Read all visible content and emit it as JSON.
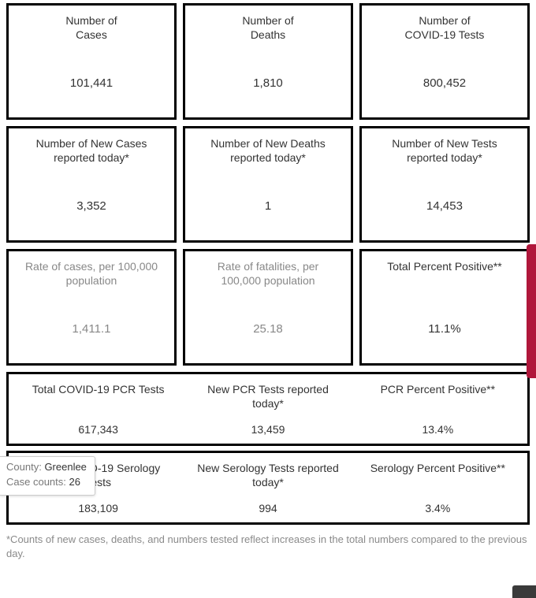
{
  "colors": {
    "card_border": "#000000",
    "text_primary": "#333333",
    "text_dim": "#888888",
    "footnote": "#8a8a8a",
    "side_tab": "#b0173b",
    "corner": "#3a3a3a",
    "tooltip_border": "#cccccc",
    "background": "#ffffff"
  },
  "row1": [
    {
      "label": "Number of\nCases",
      "value": "101,441",
      "dim": false
    },
    {
      "label": "Number of\nDeaths",
      "value": "1,810",
      "dim": false
    },
    {
      "label": "Number of\nCOVID-19 Tests",
      "value": "800,452",
      "dim": false
    }
  ],
  "row2": [
    {
      "label": "Number of New Cases\nreported today*",
      "value": "3,352",
      "dim": false
    },
    {
      "label": "Number of New Deaths\nreported today*",
      "value": "1",
      "dim": false
    },
    {
      "label": "Number of New Tests\nreported today*",
      "value": "14,453",
      "dim": false
    }
  ],
  "row3": [
    {
      "label": "Rate of cases, per 100,000\npopulation",
      "value": "1,411.1",
      "dim": true
    },
    {
      "label": "Rate of fatalities, per\n100,000 population",
      "value": "25.18",
      "dim": true
    },
    {
      "label": "Total Percent Positive**",
      "value": "11.1%",
      "dim": false
    }
  ],
  "wide1": [
    {
      "label": "Total COVID-19 PCR Tests",
      "value": "617,343"
    },
    {
      "label": "New PCR Tests reported\ntoday*",
      "value": "13,459"
    },
    {
      "label": "PCR Percent Positive**",
      "value": "13.4%"
    }
  ],
  "wide2": [
    {
      "label": "Total COVID-19 Serology\nTests",
      "value": "183,109"
    },
    {
      "label": "New Serology Tests reported\ntoday*",
      "value": "994"
    },
    {
      "label": "Serology Percent Positive**",
      "value": "3.4%"
    }
  ],
  "footnote": "*Counts of new cases, deaths, and numbers tested reflect increases in the total numbers compared to the previous day.",
  "tooltip": {
    "county_label": "County:",
    "county_value": "Greenlee",
    "counts_label": "Case counts:",
    "counts_value": "26"
  }
}
